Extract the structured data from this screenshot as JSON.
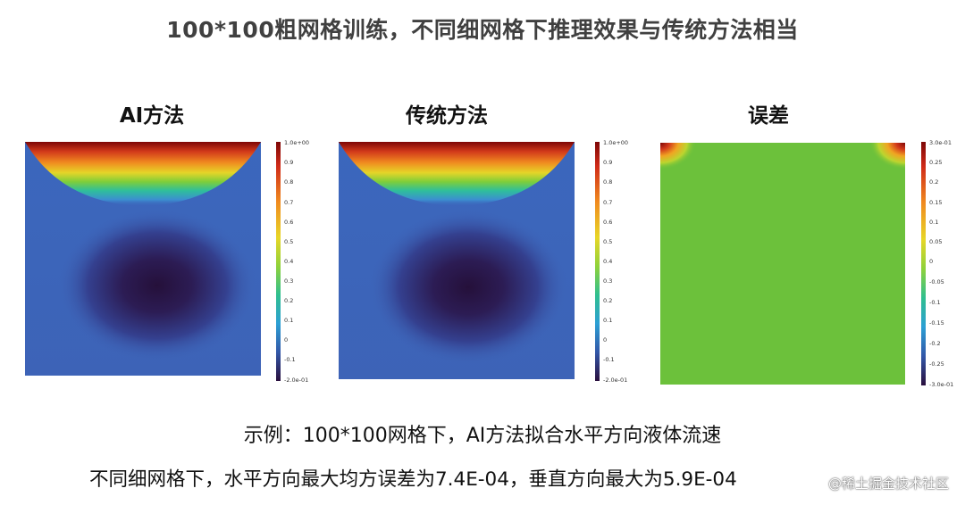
{
  "title": "100*100粗网格训练，不同细网格下推理效果与传统方法相当",
  "panels": [
    {
      "label": "AI方法",
      "colorbar": {
        "max_label": "1.0e+00",
        "min_label": "-2.0e-01",
        "ticks": [
          "0.9",
          "0.8",
          "0.7",
          "0.6",
          "0.5",
          "0.4",
          "0.3",
          "0.2",
          "0.1",
          "0",
          "-0.1"
        ],
        "colormap": "rainbow"
      }
    },
    {
      "label": "传统方法",
      "colorbar": {
        "max_label": "1.0e+00",
        "min_label": "-2.0e-01",
        "ticks": [
          "0.9",
          "0.8",
          "0.7",
          "0.6",
          "0.5",
          "0.4",
          "0.3",
          "0.2",
          "0.1",
          "0",
          "-0.1"
        ],
        "colormap": "rainbow"
      }
    },
    {
      "label": "误差",
      "colorbar": {
        "max_label": "3.0e-01",
        "min_label": "-3.0e-01",
        "ticks": [
          "0.25",
          "0.2",
          "0.15",
          "0.1",
          "0.05",
          "0",
          "-0.05",
          "-0.1",
          "-0.15",
          "-0.2",
          "-0.25"
        ],
        "colormap": "rainbow"
      }
    }
  ],
  "caption_line1": "示例：100*100网格下，AI方法拟合水平方向液体流速",
  "caption_line2": "不同细网格下，水平方向最大均方误差为7.4E-04，垂直方向最大为5.9E-04",
  "watermark": "@稀土掘金技术社区",
  "colors": {
    "low": "#2a0f3d",
    "field": "#3d62b8",
    "error_field": "#6cc13b",
    "high": "#8b0a0a"
  }
}
